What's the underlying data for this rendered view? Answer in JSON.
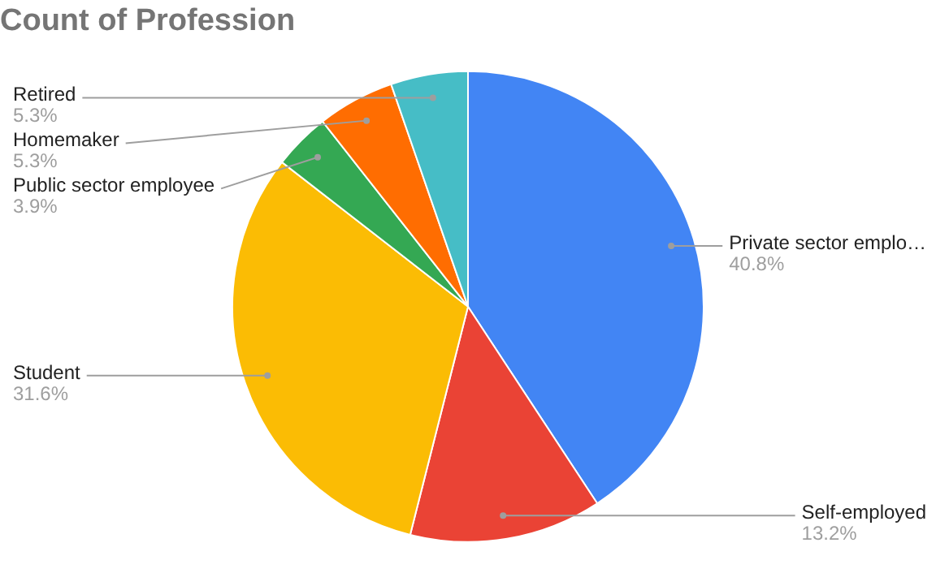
{
  "chart_data": {
    "type": "pie",
    "title": "Count of Profession",
    "categories": [
      "Private sector emplo…",
      "Self-employed",
      "Student",
      "Public sector employee",
      "Homemaker",
      "Retired"
    ],
    "values": [
      40.8,
      13.2,
      31.6,
      3.9,
      5.3,
      5.3
    ],
    "value_labels": [
      "40.8%",
      "13.2%",
      "31.6%",
      "3.9%",
      "5.3%",
      "5.3%"
    ],
    "colors": [
      "#4285f4",
      "#ea4335",
      "#fbbc04",
      "#34a853",
      "#ff6d01",
      "#46bdc6"
    ],
    "legend": false
  }
}
